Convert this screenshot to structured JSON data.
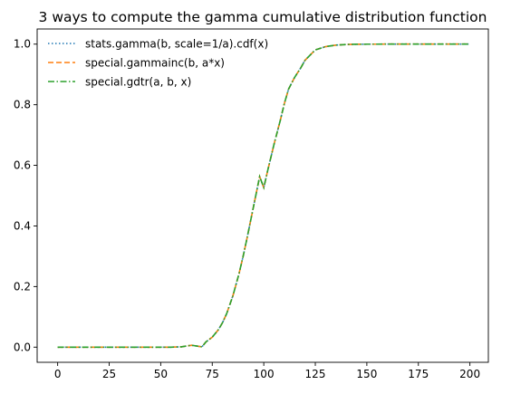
{
  "chart_data": {
    "type": "line",
    "title": "3 ways to compute the gamma cumulative distribution function",
    "xlabel": "",
    "ylabel": "",
    "xlim": [
      -9.95,
      208.95
    ],
    "ylim": [
      -0.05,
      1.05
    ],
    "xticks": [
      0,
      25,
      50,
      75,
      100,
      125,
      150,
      175,
      200
    ],
    "xtick_labels": [
      "0",
      "25",
      "50",
      "75",
      "100",
      "125",
      "150",
      "175",
      "200"
    ],
    "yticks": [
      0.0,
      0.2,
      0.4,
      0.6,
      0.8,
      1.0
    ],
    "ytick_labels": [
      "0.0",
      "0.2",
      "0.4",
      "0.6",
      "0.8",
      "1.0"
    ],
    "grid": false,
    "legend_position": "top-left",
    "x": [
      0,
      10,
      20,
      30,
      40,
      50,
      55,
      60,
      65,
      70,
      72,
      75,
      78,
      80,
      82,
      85,
      88,
      90,
      92,
      95,
      98,
      100,
      102,
      105,
      108,
      110,
      112,
      115,
      118,
      120,
      125,
      130,
      135,
      140,
      145,
      150,
      160,
      170,
      180,
      190,
      200
    ],
    "series": [
      {
        "name": "stats.gamma(b, scale=1/a).cdf(x)",
        "color": "#1f77b4",
        "linestyle": "dotted",
        "values": [
          0,
          0,
          0,
          0,
          0,
          0,
          0,
          0.0011,
          0.0063,
          0.001,
          0.0176,
          0.0329,
          0.0578,
          0.081,
          0.1107,
          0.169,
          0.2427,
          0.3004,
          0.3635,
          0.4633,
          0.5629,
          0.5265,
          0.5857,
          0.6702,
          0.7481,
          0.8043,
          0.8512,
          0.8907,
          0.9224,
          0.9466,
          0.981,
          0.9918,
          0.9968,
          0.9988,
          0.9996,
          0.9999,
          1.0,
          1.0,
          1.0,
          1.0,
          1.0
        ]
      },
      {
        "name": "special.gammainc(b, a*x)",
        "color": "#ff7f0e",
        "linestyle": "dashed",
        "values": [
          0,
          0,
          0,
          0,
          0,
          0,
          0,
          0.0011,
          0.0063,
          0.001,
          0.0176,
          0.0329,
          0.0578,
          0.081,
          0.1107,
          0.169,
          0.2427,
          0.3004,
          0.3635,
          0.4633,
          0.5629,
          0.5265,
          0.5857,
          0.6702,
          0.7481,
          0.8043,
          0.8512,
          0.8907,
          0.9224,
          0.9466,
          0.981,
          0.9918,
          0.9968,
          0.9988,
          0.9996,
          0.9999,
          1.0,
          1.0,
          1.0,
          1.0,
          1.0
        ]
      },
      {
        "name": "special.gdtr(a, b, x)",
        "color": "#2ca02c",
        "linestyle": "dashdot",
        "values": [
          0,
          0,
          0,
          0,
          0,
          0,
          0,
          0.0011,
          0.0063,
          0.001,
          0.0176,
          0.0329,
          0.0578,
          0.081,
          0.1107,
          0.169,
          0.2427,
          0.3004,
          0.3635,
          0.4633,
          0.5629,
          0.5265,
          0.5857,
          0.6702,
          0.7481,
          0.8043,
          0.8512,
          0.8907,
          0.9224,
          0.9466,
          0.981,
          0.9918,
          0.9968,
          0.9988,
          0.9996,
          0.9999,
          1.0,
          1.0,
          1.0,
          1.0,
          1.0
        ]
      }
    ]
  }
}
